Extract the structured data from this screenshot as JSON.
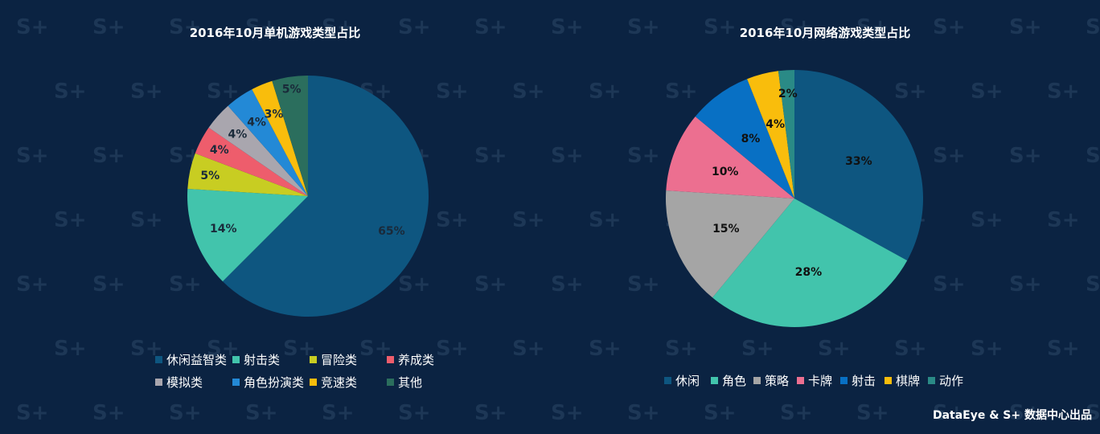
{
  "chart_data": [
    {
      "type": "pie",
      "title": "2016年10月单机游戏类型占比",
      "slices": [
        {
          "label": "休闲益智类",
          "value": 65,
          "display": "65%",
          "color": "#0e5680"
        },
        {
          "label": "射击类",
          "value": 14,
          "display": "14%",
          "color": "#42c4ac"
        },
        {
          "label": "冒险类",
          "value": 5,
          "display": "5%",
          "color": "#c8cd22"
        },
        {
          "label": "养成类",
          "value": 4,
          "display": "4%",
          "color": "#ee5d6c"
        },
        {
          "label": "模拟类",
          "value": 4,
          "display": "4%",
          "color": "#a9a6ae"
        },
        {
          "label": "角色扮演类",
          "value": 4,
          "display": "4%",
          "color": "#2389d6"
        },
        {
          "label": "竞速类",
          "value": 3,
          "display": "3%",
          "color": "#f9bd0c"
        },
        {
          "label": "其他",
          "value": 5,
          "display": "5%",
          "color": "#2b6e5d"
        }
      ],
      "legend": "bottom"
    },
    {
      "type": "pie",
      "title": "2016年10月网络游戏类型占比",
      "slices": [
        {
          "label": "休闲",
          "value": 33,
          "display": "33%",
          "color": "#0e5680"
        },
        {
          "label": "角色",
          "value": 28,
          "display": "28%",
          "color": "#42c4ac"
        },
        {
          "label": "策略",
          "value": 15,
          "display": "15%",
          "color": "#a5a5a5"
        },
        {
          "label": "卡牌",
          "value": 10,
          "display": "10%",
          "color": "#ec6f90"
        },
        {
          "label": "射击",
          "value": 8,
          "display": "8%",
          "color": "#0870c4"
        },
        {
          "label": "棋牌",
          "value": 4,
          "display": "4%",
          "color": "#f9bd0c"
        },
        {
          "label": "动作",
          "value": 2,
          "display": "2%",
          "color": "#2a8a86"
        }
      ],
      "legend": "bottom"
    }
  ],
  "footer": "DataEye & S+ 数据中心出品",
  "watermark": "S+"
}
